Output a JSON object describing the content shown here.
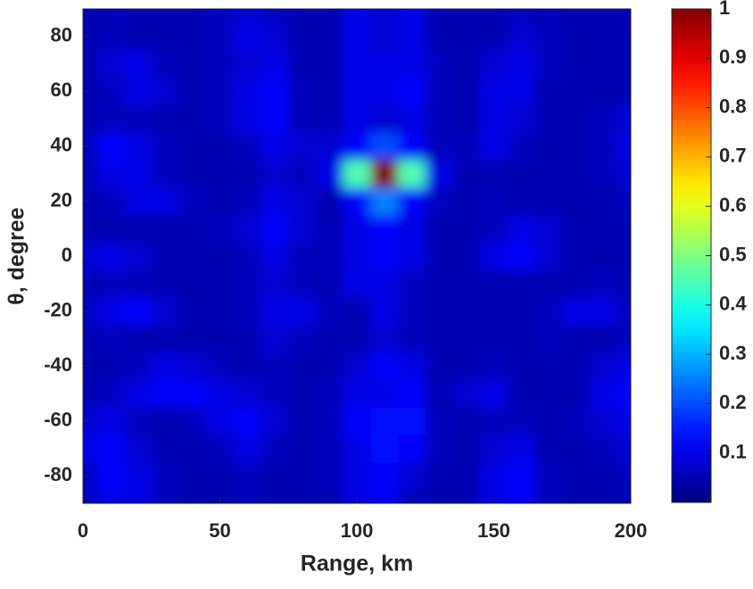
{
  "chart_data": {
    "type": "heatmap",
    "xlabel": "Range, km",
    "ylabel": "θ, degree",
    "x": [
      0,
      10,
      20,
      30,
      40,
      50,
      60,
      70,
      80,
      90,
      100,
      110,
      120,
      130,
      140,
      150,
      160,
      170,
      180,
      190,
      200
    ],
    "y": [
      -90,
      -80,
      -70,
      -60,
      -50,
      -40,
      -30,
      -20,
      -10,
      0,
      10,
      20,
      30,
      40,
      50,
      60,
      70,
      80,
      90
    ],
    "z": [
      [
        0.06,
        0.1,
        0.1,
        0.06,
        0.05,
        0.05,
        0.06,
        0.05,
        0.05,
        0.05,
        0.1,
        0.12,
        0.06,
        0.05,
        0.05,
        0.1,
        0.12,
        0.06,
        0.05,
        0.05,
        0.05
      ],
      [
        0.06,
        0.12,
        0.1,
        0.06,
        0.05,
        0.05,
        0.06,
        0.05,
        0.05,
        0.06,
        0.1,
        0.12,
        0.08,
        0.05,
        0.05,
        0.1,
        0.12,
        0.06,
        0.05,
        0.05,
        0.06
      ],
      [
        0.1,
        0.12,
        0.08,
        0.05,
        0.05,
        0.06,
        0.1,
        0.06,
        0.05,
        0.06,
        0.1,
        0.14,
        0.12,
        0.06,
        0.05,
        0.08,
        0.1,
        0.05,
        0.05,
        0.06,
        0.08
      ],
      [
        0.08,
        0.1,
        0.06,
        0.05,
        0.06,
        0.1,
        0.12,
        0.08,
        0.05,
        0.06,
        0.12,
        0.14,
        0.14,
        0.06,
        0.05,
        0.06,
        0.06,
        0.05,
        0.06,
        0.08,
        0.1
      ],
      [
        0.05,
        0.06,
        0.1,
        0.12,
        0.12,
        0.1,
        0.08,
        0.06,
        0.05,
        0.06,
        0.1,
        0.1,
        0.12,
        0.05,
        0.08,
        0.1,
        0.05,
        0.05,
        0.05,
        0.1,
        0.12
      ],
      [
        0.05,
        0.05,
        0.06,
        0.1,
        0.08,
        0.06,
        0.05,
        0.06,
        0.05,
        0.05,
        0.08,
        0.12,
        0.1,
        0.05,
        0.05,
        0.06,
        0.05,
        0.05,
        0.05,
        0.08,
        0.1
      ],
      [
        0.05,
        0.06,
        0.05,
        0.05,
        0.05,
        0.05,
        0.05,
        0.08,
        0.06,
        0.05,
        0.05,
        0.08,
        0.06,
        0.05,
        0.05,
        0.05,
        0.05,
        0.06,
        0.05,
        0.05,
        0.06
      ],
      [
        0.06,
        0.1,
        0.12,
        0.08,
        0.05,
        0.05,
        0.06,
        0.1,
        0.1,
        0.06,
        0.05,
        0.1,
        0.06,
        0.05,
        0.05,
        0.05,
        0.05,
        0.06,
        0.1,
        0.1,
        0.06
      ],
      [
        0.05,
        0.06,
        0.06,
        0.05,
        0.05,
        0.05,
        0.06,
        0.08,
        0.06,
        0.05,
        0.1,
        0.1,
        0.06,
        0.05,
        0.05,
        0.05,
        0.05,
        0.05,
        0.05,
        0.06,
        0.05
      ],
      [
        0.08,
        0.1,
        0.08,
        0.05,
        0.05,
        0.05,
        0.06,
        0.1,
        0.06,
        0.06,
        0.1,
        0.12,
        0.1,
        0.05,
        0.05,
        0.1,
        0.12,
        0.08,
        0.05,
        0.05,
        0.05
      ],
      [
        0.05,
        0.05,
        0.05,
        0.05,
        0.05,
        0.06,
        0.08,
        0.12,
        0.08,
        0.05,
        0.1,
        0.12,
        0.1,
        0.05,
        0.05,
        0.06,
        0.1,
        0.08,
        0.05,
        0.05,
        0.05
      ],
      [
        0.05,
        0.06,
        0.1,
        0.1,
        0.06,
        0.05,
        0.06,
        0.1,
        0.08,
        0.05,
        0.12,
        0.25,
        0.12,
        0.06,
        0.05,
        0.06,
        0.05,
        0.05,
        0.05,
        0.05,
        0.06
      ],
      [
        0.05,
        0.1,
        0.1,
        0.06,
        0.05,
        0.05,
        0.05,
        0.08,
        0.06,
        0.1,
        0.45,
        1,
        0.45,
        0.1,
        0.05,
        0.05,
        0.05,
        0.05,
        0.05,
        0.06,
        0.08
      ],
      [
        0.06,
        0.12,
        0.1,
        0.06,
        0.05,
        0.05,
        0.06,
        0.1,
        0.08,
        0.08,
        0.12,
        0.2,
        0.12,
        0.06,
        0.06,
        0.1,
        0.06,
        0.05,
        0.05,
        0.06,
        0.1
      ],
      [
        0.05,
        0.06,
        0.06,
        0.05,
        0.05,
        0.06,
        0.1,
        0.12,
        0.06,
        0.05,
        0.1,
        0.08,
        0.1,
        0.06,
        0.05,
        0.1,
        0.08,
        0.05,
        0.05,
        0.06,
        0.08
      ],
      [
        0.05,
        0.06,
        0.1,
        0.08,
        0.05,
        0.06,
        0.1,
        0.12,
        0.06,
        0.05,
        0.1,
        0.1,
        0.12,
        0.06,
        0.05,
        0.1,
        0.1,
        0.05,
        0.05,
        0.05,
        0.05
      ],
      [
        0.05,
        0.08,
        0.1,
        0.06,
        0.05,
        0.06,
        0.08,
        0.1,
        0.05,
        0.05,
        0.1,
        0.1,
        0.1,
        0.06,
        0.05,
        0.08,
        0.1,
        0.06,
        0.05,
        0.05,
        0.05
      ],
      [
        0.05,
        0.06,
        0.05,
        0.05,
        0.05,
        0.06,
        0.1,
        0.08,
        0.05,
        0.05,
        0.1,
        0.08,
        0.1,
        0.05,
        0.05,
        0.05,
        0.08,
        0.06,
        0.05,
        0.05,
        0.05
      ],
      [
        0.05,
        0.05,
        0.05,
        0.05,
        0.05,
        0.06,
        0.08,
        0.06,
        0.05,
        0.05,
        0.1,
        0.08,
        0.1,
        0.05,
        0.05,
        0.05,
        0.06,
        0.05,
        0.05,
        0.05,
        0.05
      ]
    ],
    "xlim": [
      0,
      200
    ],
    "ylim": [
      -90,
      90
    ],
    "xticks": [
      0,
      50,
      100,
      150,
      200
    ],
    "yticks": [
      -80,
      -60,
      -40,
      -20,
      0,
      20,
      40,
      60,
      80
    ],
    "colormap": "jet",
    "clim": [
      0,
      1
    ],
    "colorbar_ticks": [
      0.1,
      0.2,
      0.3,
      0.4,
      0.5,
      0.6,
      0.7,
      0.8,
      0.9,
      1
    ]
  }
}
